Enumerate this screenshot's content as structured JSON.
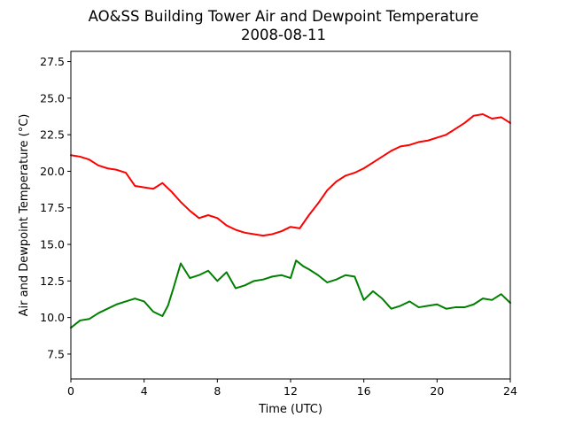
{
  "chart_data": {
    "type": "line",
    "title": "AO&SS Building Tower Air and Dewpoint Temperature",
    "subtitle": "2008-08-11",
    "xlabel": "Time (UTC)",
    "ylabel": "Air and Dewpoint Temperature (°C)",
    "xlim": [
      0,
      24
    ],
    "ylim": [
      5.8,
      28.2
    ],
    "xticks": [
      0,
      4,
      8,
      12,
      16,
      20,
      24
    ],
    "yticks": [
      7.5,
      10.0,
      12.5,
      15.0,
      17.5,
      20.0,
      22.5,
      25.0,
      27.5
    ],
    "xtick_labels": [
      "0",
      "4",
      "8",
      "12",
      "16",
      "20",
      "24"
    ],
    "ytick_labels": [
      "7.5",
      "10.0",
      "12.5",
      "15.0",
      "17.5",
      "20.0",
      "22.5",
      "25.0",
      "27.5"
    ],
    "grid": false,
    "legend": "none",
    "series": [
      {
        "color": "#ff0000",
        "x": [
          0,
          0.5,
          1,
          1.5,
          2,
          2.5,
          3,
          3.5,
          4,
          4.5,
          5,
          5.5,
          6,
          6.5,
          7,
          7.5,
          8,
          8.5,
          9,
          9.5,
          10,
          10.5,
          11,
          11.5,
          12,
          12.5,
          13,
          13.5,
          14,
          14.5,
          15,
          15.5,
          16,
          16.5,
          17,
          17.5,
          18,
          18.5,
          19,
          19.5,
          20,
          20.5,
          21,
          21.5,
          22,
          22.5,
          23,
          23.5,
          24
        ],
        "values": [
          21.1,
          21.0,
          20.8,
          20.4,
          20.2,
          20.1,
          19.9,
          19.0,
          18.9,
          18.8,
          19.2,
          18.6,
          17.9,
          17.3,
          16.8,
          17.0,
          16.8,
          16.3,
          16.0,
          15.8,
          15.7,
          15.6,
          15.7,
          15.9,
          16.2,
          16.1,
          17.0,
          17.8,
          18.7,
          19.3,
          19.7,
          19.9,
          20.2,
          20.6,
          21.0,
          21.4,
          21.7,
          21.8,
          22.0,
          22.1,
          22.3,
          22.5,
          22.9,
          23.3,
          23.8,
          23.9,
          23.6,
          23.7,
          23.3
        ]
      },
      {
        "color": "#008000",
        "x": [
          0,
          0.5,
          1,
          1.5,
          2,
          2.5,
          3,
          3.5,
          4,
          4.5,
          5,
          5.3,
          5.6,
          6,
          6.5,
          7,
          7.5,
          8,
          8.5,
          9,
          9.5,
          10,
          10.5,
          11,
          11.5,
          12,
          12.3,
          12.7,
          13,
          13.5,
          14,
          14.5,
          15,
          15.5,
          16,
          16.5,
          17,
          17.5,
          18,
          18.5,
          19,
          19.5,
          20,
          20.5,
          21,
          21.5,
          22,
          22.5,
          23,
          23.5,
          24
        ],
        "values": [
          9.3,
          9.8,
          9.9,
          10.3,
          10.6,
          10.9,
          11.1,
          11.3,
          11.1,
          10.4,
          10.1,
          10.8,
          12.0,
          13.7,
          12.7,
          12.9,
          13.2,
          12.5,
          13.1,
          12.0,
          12.2,
          12.5,
          12.6,
          12.8,
          12.9,
          12.7,
          13.9,
          13.5,
          13.3,
          12.9,
          12.4,
          12.6,
          12.9,
          12.8,
          11.2,
          11.8,
          11.3,
          10.6,
          10.8,
          11.1,
          10.7,
          10.8,
          10.9,
          10.6,
          10.7,
          10.7,
          10.9,
          11.3,
          11.2,
          11.6,
          11.0
        ]
      }
    ]
  }
}
